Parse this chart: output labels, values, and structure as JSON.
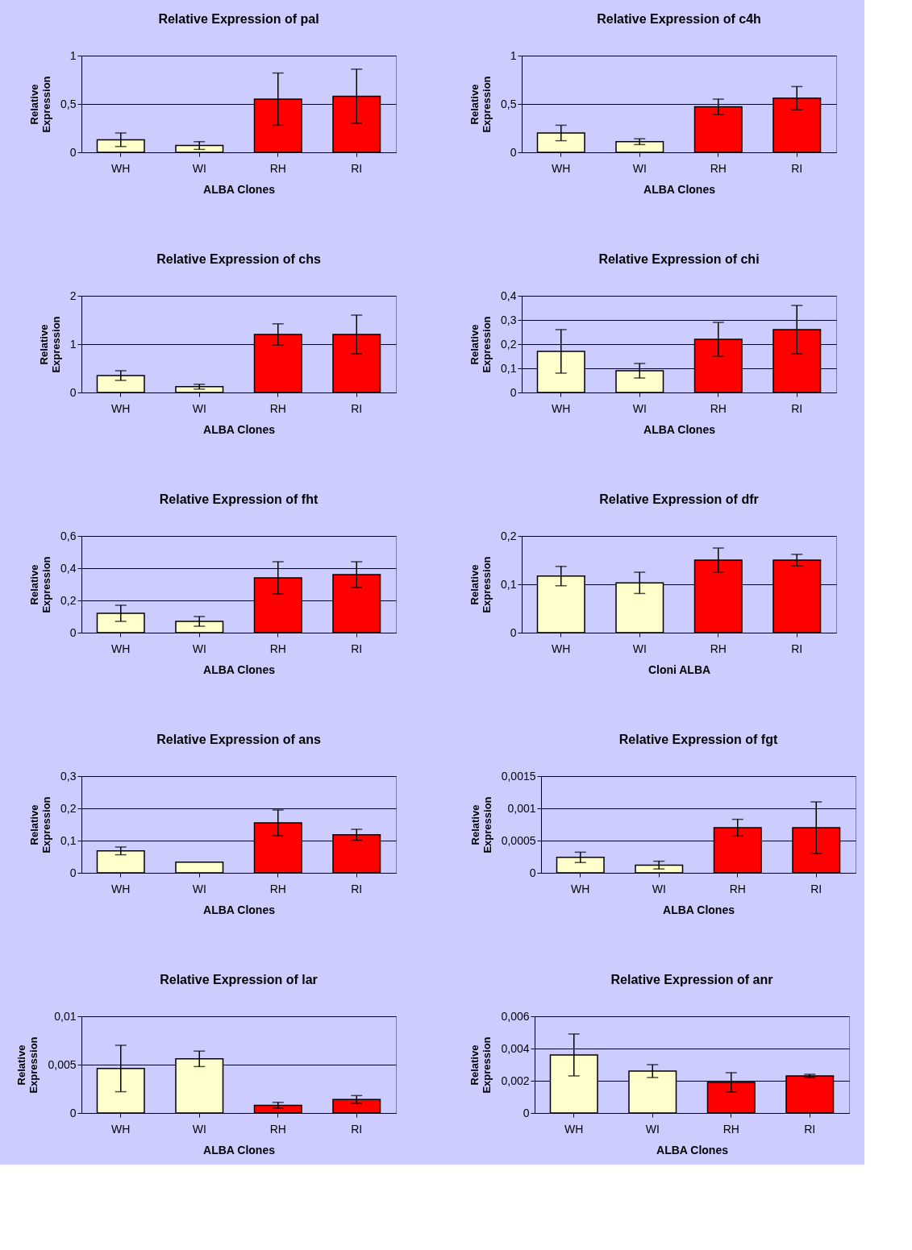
{
  "chart_data": [
    {
      "type": "bar",
      "title": "Relative Expression of pal",
      "xlabel": "ALBA Clones",
      "ylabel": "Relative Expression",
      "categories": [
        "WH",
        "WI",
        "RH",
        "RI"
      ],
      "values": [
        0.13,
        0.07,
        0.55,
        0.58
      ],
      "errors": [
        0.07,
        0.04,
        0.27,
        0.28
      ],
      "colors": [
        "#ffffcc",
        "#ffffcc",
        "#ff0000",
        "#ff0000"
      ],
      "ylim": [
        0,
        1
      ],
      "yticks": [
        0,
        {
          "value": 0.5,
          "label": "0,5"
        },
        1
      ],
      "grid": "y"
    },
    {
      "type": "bar",
      "title": "Relative Expression of c4h",
      "xlabel": "ALBA Clones",
      "ylabel": "Relative Expression",
      "categories": [
        "WH",
        "WI",
        "RH",
        "RI"
      ],
      "values": [
        0.2,
        0.11,
        0.47,
        0.56
      ],
      "errors": [
        0.08,
        0.03,
        0.08,
        0.12
      ],
      "colors": [
        "#ffffcc",
        "#ffffcc",
        "#ff0000",
        "#ff0000"
      ],
      "ylim": [
        0,
        1
      ],
      "yticks": [
        0,
        {
          "value": 0.5,
          "label": "0,5"
        },
        1
      ],
      "grid": "y"
    },
    {
      "type": "bar",
      "title": "Relative Expression of chs",
      "xlabel": "ALBA Clones",
      "ylabel": "Relative Expression",
      "categories": [
        "WH",
        "WI",
        "RH",
        "RI"
      ],
      "values": [
        0.35,
        0.12,
        1.2,
        1.2
      ],
      "errors": [
        0.1,
        0.05,
        0.22,
        0.4
      ],
      "colors": [
        "#ffffcc",
        "#ffffcc",
        "#ff0000",
        "#ff0000"
      ],
      "ylim": [
        0,
        2
      ],
      "yticks": [
        0,
        1,
        2
      ],
      "grid": "y"
    },
    {
      "type": "bar",
      "title": "Relative Expression of chi",
      "xlabel": "ALBA Clones",
      "ylabel": "Relative Expression",
      "categories": [
        "WH",
        "WI",
        "RH",
        "RI"
      ],
      "values": [
        0.17,
        0.09,
        0.22,
        0.26
      ],
      "errors": [
        0.09,
        0.03,
        0.07,
        0.1
      ],
      "colors": [
        "#ffffcc",
        "#ffffcc",
        "#ff0000",
        "#ff0000"
      ],
      "ylim": [
        0,
        0.4
      ],
      "yticks": [
        0,
        {
          "value": 0.1,
          "label": "0,1"
        },
        {
          "value": 0.2,
          "label": "0,2"
        },
        {
          "value": 0.3,
          "label": "0,3"
        },
        {
          "value": 0.4,
          "label": "0,4"
        }
      ],
      "grid": "y"
    },
    {
      "type": "bar",
      "title": "Relative Expression of fht",
      "xlabel": "ALBA Clones",
      "ylabel": "Relative Expression",
      "categories": [
        "WH",
        "WI",
        "RH",
        "RI"
      ],
      "values": [
        0.12,
        0.07,
        0.34,
        0.36
      ],
      "errors": [
        0.05,
        0.03,
        0.1,
        0.08
      ],
      "colors": [
        "#ffffcc",
        "#ffffcc",
        "#ff0000",
        "#ff0000"
      ],
      "ylim": [
        0,
        0.6
      ],
      "yticks": [
        0,
        {
          "value": 0.2,
          "label": "0,2"
        },
        {
          "value": 0.4,
          "label": "0,4"
        },
        {
          "value": 0.6,
          "label": "0,6"
        }
      ],
      "grid": "y"
    },
    {
      "type": "bar",
      "title": "Relative Expression of dfr",
      "xlabel": "Cloni ALBA",
      "ylabel": "Relative Expression",
      "categories": [
        "WH",
        "WI",
        "RH",
        "RI"
      ],
      "values": [
        0.117,
        0.103,
        0.15,
        0.15
      ],
      "errors": [
        0.02,
        0.022,
        0.025,
        0.012
      ],
      "colors": [
        "#ffffcc",
        "#ffffcc",
        "#ff0000",
        "#ff0000"
      ],
      "ylim": [
        0,
        0.2
      ],
      "yticks": [
        0,
        {
          "value": 0.1,
          "label": "0,1"
        },
        {
          "value": 0.2,
          "label": "0,2"
        }
      ],
      "grid": "y"
    },
    {
      "type": "bar",
      "title": "Relative Expression of ans",
      "xlabel": "ALBA Clones",
      "ylabel": "Relative Expression",
      "categories": [
        "WH",
        "WI",
        "RH",
        "RI"
      ],
      "values": [
        0.068,
        0.033,
        0.155,
        0.118
      ],
      "errors": [
        0.012,
        null,
        0.04,
        0.017
      ],
      "colors": [
        "#ffffcc",
        "#ffffcc",
        "#ff0000",
        "#ff0000"
      ],
      "ylim": [
        0,
        0.3
      ],
      "yticks": [
        0,
        {
          "value": 0.1,
          "label": "0,1"
        },
        {
          "value": 0.2,
          "label": "0,2"
        },
        {
          "value": 0.3,
          "label": "0,3"
        }
      ],
      "grid": "y"
    },
    {
      "type": "bar",
      "title": "Relative Expression of fgt",
      "xlabel": "ALBA Clones",
      "ylabel": "Relative Expression",
      "categories": [
        "WH",
        "WI",
        "RH",
        "RI"
      ],
      "values": [
        0.00024,
        0.00012,
        0.0007,
        0.0007
      ],
      "errors": [
        8e-05,
        6e-05,
        0.00013,
        0.0004
      ],
      "colors": [
        "#ffffcc",
        "#ffffcc",
        "#ff0000",
        "#ff0000"
      ],
      "ylim": [
        0,
        0.0015
      ],
      "yticks": [
        0,
        {
          "value": 0.0005,
          "label": "0,0005"
        },
        {
          "value": 0.001,
          "label": "0,001"
        },
        {
          "value": 0.0015,
          "label": "0,0015"
        }
      ],
      "grid": "y"
    },
    {
      "type": "bar",
      "title": "Relative Expression of lar",
      "xlabel": "ALBA Clones",
      "ylabel": "Relative Expression",
      "categories": [
        "WH",
        "WI",
        "RH",
        "RI"
      ],
      "values": [
        0.0046,
        0.0056,
        0.0008,
        0.0014
      ],
      "errors": [
        0.0024,
        0.0008,
        0.0003,
        0.0004
      ],
      "colors": [
        "#ffffcc",
        "#ffffcc",
        "#ff0000",
        "#ff0000"
      ],
      "ylim": [
        0,
        0.01
      ],
      "yticks": [
        0,
        {
          "value": 0.005,
          "label": "0,005"
        },
        {
          "value": 0.01,
          "label": "0,01"
        }
      ],
      "grid": "y"
    },
    {
      "type": "bar",
      "title": "Relative Expression of anr",
      "xlabel": "ALBA Clones",
      "ylabel": "Relative Expression",
      "categories": [
        "WH",
        "WI",
        "RH",
        "RI"
      ],
      "values": [
        0.0036,
        0.0026,
        0.0019,
        0.0023
      ],
      "errors": [
        0.0013,
        0.0004,
        0.0006,
        0.0001
      ],
      "colors": [
        "#ffffcc",
        "#ffffcc",
        "#ff0000",
        "#ff0000"
      ],
      "ylim": [
        0,
        0.006
      ],
      "yticks": [
        0,
        {
          "value": 0.002,
          "label": "0,002"
        },
        {
          "value": 0.004,
          "label": "0,004"
        },
        {
          "value": 0.006,
          "label": "0,006"
        }
      ],
      "grid": "y"
    }
  ]
}
